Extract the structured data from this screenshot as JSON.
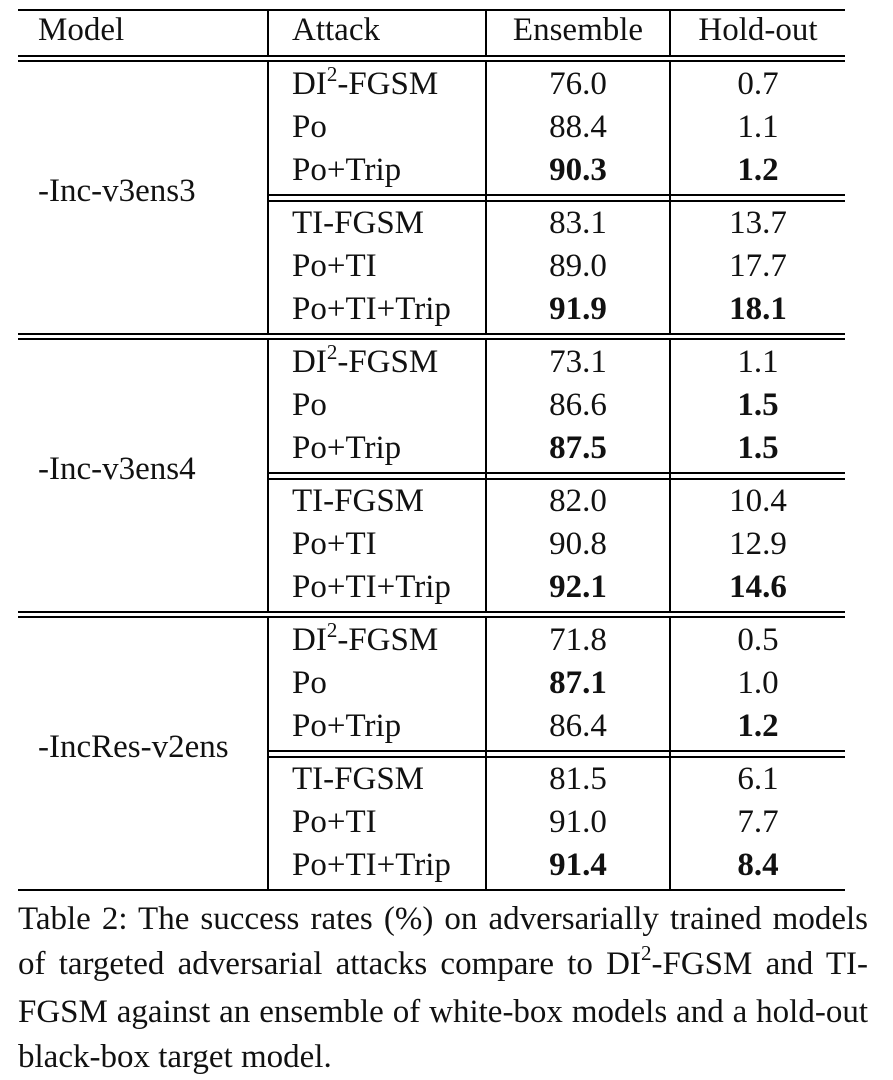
{
  "table": {
    "headers": {
      "model": "Model",
      "attack": "Attack",
      "ensemble": "Ensemble",
      "holdout": "Hold-out"
    },
    "groups": [
      {
        "model": "-Inc-v3ens3",
        "blocks": [
          [
            {
              "attack": "DI",
              "attack_sup": "2",
              "attack_rest": "-FGSM",
              "ensemble": "76.0",
              "holdout": "0.7",
              "ens_bold": false,
              "hold_bold": false
            },
            {
              "attack": "Po",
              "ensemble": "88.4",
              "holdout": "1.1",
              "ens_bold": false,
              "hold_bold": false
            },
            {
              "attack": "Po+Trip",
              "ensemble": "90.3",
              "holdout": "1.2",
              "ens_bold": true,
              "hold_bold": true
            }
          ],
          [
            {
              "attack": "TI-FGSM",
              "ensemble": "83.1",
              "holdout": "13.7",
              "ens_bold": false,
              "hold_bold": false
            },
            {
              "attack": "Po+TI",
              "ensemble": "89.0",
              "holdout": "17.7",
              "ens_bold": false,
              "hold_bold": false
            },
            {
              "attack": "Po+TI+Trip",
              "ensemble": "91.9",
              "holdout": "18.1",
              "ens_bold": true,
              "hold_bold": true
            }
          ]
        ]
      },
      {
        "model": "-Inc-v3ens4",
        "blocks": [
          [
            {
              "attack": "DI",
              "attack_sup": "2",
              "attack_rest": "-FGSM",
              "ensemble": "73.1",
              "holdout": "1.1",
              "ens_bold": false,
              "hold_bold": false
            },
            {
              "attack": "Po",
              "ensemble": "86.6",
              "holdout": "1.5",
              "ens_bold": false,
              "hold_bold": true
            },
            {
              "attack": "Po+Trip",
              "ensemble": "87.5",
              "holdout": "1.5",
              "ens_bold": true,
              "hold_bold": true
            }
          ],
          [
            {
              "attack": "TI-FGSM",
              "ensemble": "82.0",
              "holdout": "10.4",
              "ens_bold": false,
              "hold_bold": false
            },
            {
              "attack": "Po+TI",
              "ensemble": "90.8",
              "holdout": "12.9",
              "ens_bold": false,
              "hold_bold": false
            },
            {
              "attack": "Po+TI+Trip",
              "ensemble": "92.1",
              "holdout": "14.6",
              "ens_bold": true,
              "hold_bold": true
            }
          ]
        ]
      },
      {
        "model": "-IncRes-v2ens",
        "blocks": [
          [
            {
              "attack": "DI",
              "attack_sup": "2",
              "attack_rest": "-FGSM",
              "ensemble": "71.8",
              "holdout": "0.5",
              "ens_bold": false,
              "hold_bold": false
            },
            {
              "attack": "Po",
              "ensemble": "87.1",
              "holdout": "1.0",
              "ens_bold": true,
              "hold_bold": false
            },
            {
              "attack": "Po+Trip",
              "ensemble": "86.4",
              "holdout": "1.2",
              "ens_bold": false,
              "hold_bold": true
            }
          ],
          [
            {
              "attack": "TI-FGSM",
              "ensemble": "81.5",
              "holdout": "6.1",
              "ens_bold": false,
              "hold_bold": false
            },
            {
              "attack": "Po+TI",
              "ensemble": "91.0",
              "holdout": "7.7",
              "ens_bold": false,
              "hold_bold": false
            },
            {
              "attack": "Po+TI+Trip",
              "ensemble": "91.4",
              "holdout": "8.4",
              "ens_bold": true,
              "hold_bold": true
            }
          ]
        ]
      }
    ]
  },
  "caption": {
    "part1": "Table 2:  The success rates (%) on adversarially trained models of targeted adversarial attacks compare to DI",
    "sup": "2",
    "part2": "-FGSM and TI-FGSM against an ensemble of white-box models and a hold-out black-box target model."
  }
}
